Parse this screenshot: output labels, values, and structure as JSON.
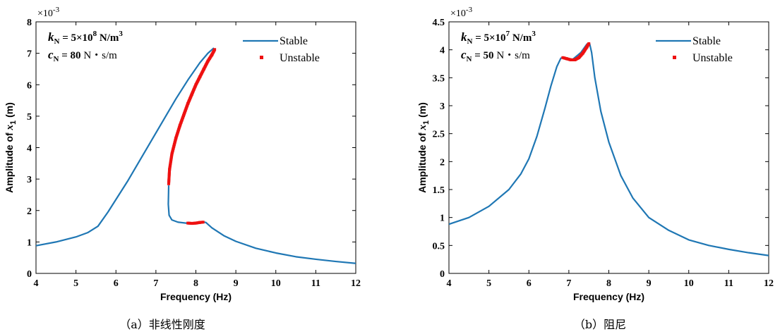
{
  "chart_data": [
    {
      "type": "line",
      "caption": "（a）非线性刚度",
      "ylabel_prefix": "Amplitude of ",
      "ylabel_var": "x",
      "ylabel_sub": "1",
      "ylabel_unit": " (m)",
      "xlabel": "Frequency (Hz)",
      "y_exponent": "×10",
      "y_exponent_power": "-3",
      "xlim": [
        4,
        12
      ],
      "ylim": [
        0,
        8
      ],
      "xticks": [
        "4",
        "5",
        "6",
        "7",
        "8",
        "9",
        "10",
        "11",
        "12"
      ],
      "yticks": [
        "0",
        "1",
        "2",
        "3",
        "4",
        "5",
        "6",
        "7",
        "8"
      ],
      "annotations": {
        "k_sym": "k",
        "k_sub": "N",
        "k_eq": " = 5×10",
        "k_pow": "8",
        "k_unit": " N/m",
        "k_unit_pow": "3",
        "c_sym": "c",
        "c_sub": "N",
        "c_eq": " = 80",
        "c_unit": " N・s/m"
      },
      "legend": [
        "Stable",
        "Unstable"
      ],
      "legend_position": "top-right",
      "colors": {
        "stable": "#1f77b4",
        "unstable": "#ee1111"
      },
      "series": [
        {
          "name": "Stable",
          "x": [
            4.0,
            4.5,
            5.0,
            5.3,
            5.55,
            5.8,
            6.0,
            6.3,
            6.6,
            6.9,
            7.2,
            7.5,
            7.8,
            8.1,
            8.3,
            8.45
          ],
          "y": [
            0.88,
            1.0,
            1.16,
            1.3,
            1.5,
            1.95,
            2.35,
            2.95,
            3.6,
            4.25,
            4.9,
            5.55,
            6.15,
            6.7,
            7.0,
            7.17
          ]
        },
        {
          "name": "Stable",
          "x": [
            7.32,
            7.31,
            7.33,
            7.4,
            7.55,
            7.75,
            7.95,
            8.15,
            8.25,
            8.4,
            8.7,
            9.0,
            9.5,
            10.0,
            10.5,
            11.0,
            11.5,
            12.0
          ],
          "y": [
            2.8,
            2.2,
            1.85,
            1.7,
            1.63,
            1.6,
            1.61,
            1.64,
            1.62,
            1.45,
            1.2,
            1.02,
            0.8,
            0.65,
            0.53,
            0.45,
            0.38,
            0.32
          ]
        },
        {
          "name": "Unstable",
          "x": [
            7.32,
            7.34,
            7.4,
            7.5,
            7.6,
            7.7,
            7.8,
            7.9,
            8.0,
            8.1,
            8.2,
            8.3,
            8.4,
            8.47
          ],
          "y": [
            2.85,
            3.3,
            3.8,
            4.3,
            4.7,
            5.05,
            5.4,
            5.7,
            6.0,
            6.25,
            6.5,
            6.75,
            6.95,
            7.12
          ]
        },
        {
          "name": "Unstable",
          "x": [
            7.8,
            7.9,
            8.0,
            8.1,
            8.18
          ],
          "y": [
            1.6,
            1.59,
            1.6,
            1.62,
            1.63
          ]
        }
      ]
    },
    {
      "type": "line",
      "caption": "（b）阻尼",
      "ylabel_prefix": "Amplitude of ",
      "ylabel_var": "x",
      "ylabel_sub": "1",
      "ylabel_unit": " (m)",
      "xlabel": "Frequency (Hz)",
      "y_exponent": "×10",
      "y_exponent_power": "-3",
      "xlim": [
        4,
        12
      ],
      "ylim": [
        0,
        4.5
      ],
      "xticks": [
        "4",
        "5",
        "6",
        "7",
        "8",
        "9",
        "10",
        "11",
        "12"
      ],
      "yticks": [
        "0",
        "0.5",
        "1",
        "1.5",
        "2",
        "2.5",
        "3",
        "3.5",
        "4",
        "4.5"
      ],
      "annotations": {
        "k_sym": "k",
        "k_sub": "N",
        "k_eq": " = 5×10",
        "k_pow": "7",
        "k_unit": " N/m",
        "k_unit_pow": "3",
        "c_sym": "c",
        "c_sub": "N",
        "c_eq": " = 50",
        "c_unit": " N・s/m"
      },
      "legend": [
        "Stable",
        "Unstable"
      ],
      "legend_position": "top-right",
      "colors": {
        "stable": "#1f77b4",
        "unstable": "#ee1111"
      },
      "series": [
        {
          "name": "Stable",
          "x": [
            4.0,
            4.5,
            5.0,
            5.5,
            5.8,
            6.0,
            6.2,
            6.4,
            6.55,
            6.7,
            6.8,
            6.85,
            6.95,
            7.1,
            7.3,
            7.45,
            7.52,
            7.57,
            7.65,
            7.8,
            8.0,
            8.3,
            8.6,
            9.0,
            9.5,
            10.0,
            10.5,
            11.0,
            11.5,
            12.0
          ],
          "y": [
            0.88,
            1.0,
            1.2,
            1.5,
            1.78,
            2.05,
            2.45,
            2.95,
            3.35,
            3.7,
            3.85,
            3.86,
            3.84,
            3.83,
            3.95,
            4.1,
            4.11,
            3.95,
            3.5,
            2.9,
            2.35,
            1.75,
            1.35,
            1.0,
            0.77,
            0.6,
            0.5,
            0.43,
            0.37,
            0.32
          ]
        },
        {
          "name": "Unstable",
          "x": [
            6.85,
            6.95,
            7.05,
            7.15,
            7.25,
            7.35,
            7.45,
            7.5
          ],
          "y": [
            3.86,
            3.84,
            3.82,
            3.82,
            3.86,
            3.94,
            4.05,
            4.11
          ]
        }
      ]
    }
  ]
}
